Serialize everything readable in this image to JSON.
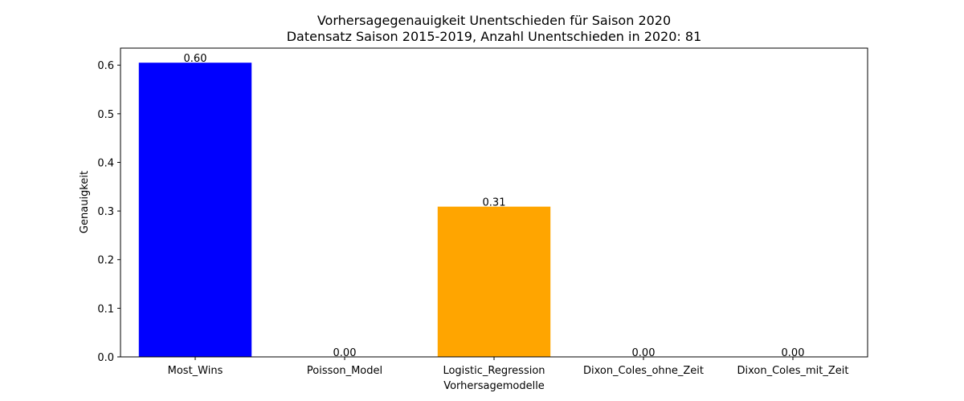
{
  "chart_data": {
    "type": "bar",
    "title": "Vorhersagegenauigkeit Unentschieden für Saison 2020",
    "subtitle": "Datensatz Saison 2015-2019, Anzahl Unentschieden in 2020: 81",
    "xlabel": "Vorhersagemodelle",
    "ylabel": "Genauigkeit",
    "categories": [
      "Most_Wins",
      "Poisson_Model",
      "Logistic_Regression",
      "Dixon_Coles_ohne_Zeit",
      "Dixon_Coles_mit_Zeit"
    ],
    "values": [
      0.605,
      0.0,
      0.309,
      0.0,
      0.0
    ],
    "value_labels": [
      "0.60",
      "0.00",
      "0.31",
      "0.00",
      "0.00"
    ],
    "colors": [
      "#0000ff",
      "#0000ff",
      "#ffa500",
      "#0000ff",
      "#0000ff"
    ],
    "ylim": [
      0,
      0.635
    ],
    "yticks": [
      0.0,
      0.1,
      0.2,
      0.3,
      0.4,
      0.5,
      0.6
    ],
    "ytick_labels": [
      "0.0",
      "0.1",
      "0.2",
      "0.3",
      "0.4",
      "0.5",
      "0.6"
    ],
    "grid": false,
    "legend": "none"
  }
}
